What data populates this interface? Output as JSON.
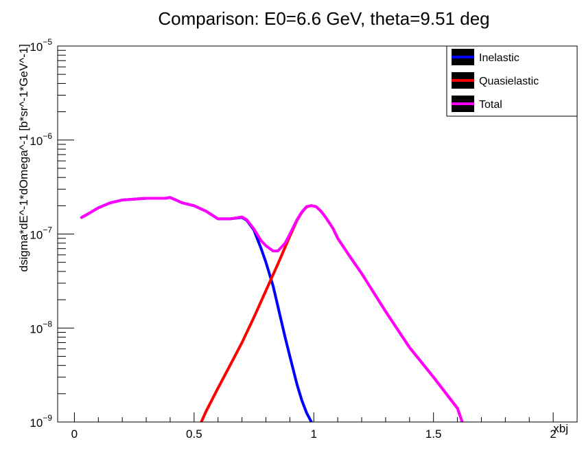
{
  "chart_data": {
    "type": "line",
    "title": "Comparison: E0=6.6 GeV, theta=9.51 deg",
    "xlabel": "xbj",
    "ylabel": "dsigma*dE^-1*dOmega^-1 [b*sr^-1*GeV^-1]",
    "xlim": [
      -0.07,
      2.1
    ],
    "ylim": [
      1e-09,
      1e-05
    ],
    "yscale": "log",
    "grid": false,
    "legend_position": "top-right",
    "x_ticks": [
      {
        "value": 0,
        "label": "0"
      },
      {
        "value": 0.5,
        "label": "0.5"
      },
      {
        "value": 1,
        "label": "1"
      },
      {
        "value": 1.5,
        "label": "1.5"
      },
      {
        "value": 2,
        "label": "2"
      }
    ],
    "y_ticks": [
      {
        "value": 1e-09,
        "base": "10",
        "exp": "−9"
      },
      {
        "value": 1e-08,
        "base": "10",
        "exp": "−8"
      },
      {
        "value": 1e-07,
        "base": "10",
        "exp": "−7"
      },
      {
        "value": 1e-06,
        "base": "10",
        "exp": "−6"
      },
      {
        "value": 1e-05,
        "base": "10",
        "exp": "−5"
      }
    ],
    "series": [
      {
        "name": "Inelastic",
        "color": "#0000ff",
        "x": [
          0.03,
          0.05,
          0.1,
          0.15,
          0.2,
          0.3,
          0.38,
          0.4,
          0.45,
          0.5,
          0.55,
          0.6,
          0.65,
          0.7,
          0.72,
          0.75,
          0.78,
          0.8,
          0.83,
          0.85,
          0.88,
          0.9,
          0.93,
          0.95,
          0.97,
          0.99
        ],
        "y": [
          1.5e-07,
          1.6e-07,
          1.9e-07,
          2.15e-07,
          2.3e-07,
          2.4e-07,
          2.4e-07,
          2.45e-07,
          2.15e-07,
          2e-07,
          1.75e-07,
          1.45e-07,
          1.45e-07,
          1.5e-07,
          1.4e-07,
          1.1e-07,
          7e-08,
          5e-08,
          2.8e-08,
          1.7e-08,
          8e-09,
          5e-09,
          2.5e-09,
          1.7e-09,
          1.25e-09,
          1e-09
        ]
      },
      {
        "name": "Quasielastic",
        "color": "#ff0000",
        "x": [
          0.53,
          0.55,
          0.6,
          0.65,
          0.7,
          0.75,
          0.8,
          0.85,
          0.9,
          0.93,
          0.95,
          0.97,
          0.99,
          1.01,
          1.03,
          1.05,
          1.08,
          1.1,
          1.15,
          1.2,
          1.3,
          1.4,
          1.5,
          1.6,
          1.62
        ],
        "y": [
          1e-09,
          1.3e-09,
          2.3e-09,
          4e-09,
          7e-09,
          1.3e-08,
          2.5e-08,
          4.8e-08,
          9.5e-08,
          1.4e-07,
          1.7e-07,
          1.95e-07,
          2e-07,
          1.95e-07,
          1.75e-07,
          1.5e-07,
          1.15e-07,
          9e-08,
          5.8e-08,
          3.8e-08,
          1.5e-08,
          6.2e-09,
          3e-09,
          1.4e-09,
          1e-09
        ]
      },
      {
        "name": "Total",
        "color": "#ff00ff",
        "x": [
          0.03,
          0.05,
          0.1,
          0.15,
          0.2,
          0.3,
          0.38,
          0.4,
          0.45,
          0.5,
          0.55,
          0.6,
          0.65,
          0.7,
          0.72,
          0.75,
          0.78,
          0.8,
          0.83,
          0.85,
          0.88,
          0.9,
          0.93,
          0.95,
          0.97,
          0.99,
          1.01,
          1.03,
          1.05,
          1.08,
          1.1,
          1.15,
          1.2,
          1.3,
          1.4,
          1.5,
          1.6,
          1.62
        ],
        "y": [
          1.5e-07,
          1.6e-07,
          1.9e-07,
          2.15e-07,
          2.3e-07,
          2.4e-07,
          2.4e-07,
          2.45e-07,
          2.15e-07,
          2e-07,
          1.75e-07,
          1.45e-07,
          1.45e-07,
          1.52e-07,
          1.42e-07,
          1.13e-07,
          8.5e-08,
          7.5e-08,
          6.6e-08,
          6.6e-08,
          8e-08,
          1e-07,
          1.42e-07,
          1.72e-07,
          1.96e-07,
          2.01e-07,
          1.95e-07,
          1.75e-07,
          1.5e-07,
          1.15e-07,
          9e-08,
          5.8e-08,
          3.8e-08,
          1.5e-08,
          6.2e-09,
          3e-09,
          1.4e-09,
          1e-09
        ]
      }
    ]
  }
}
